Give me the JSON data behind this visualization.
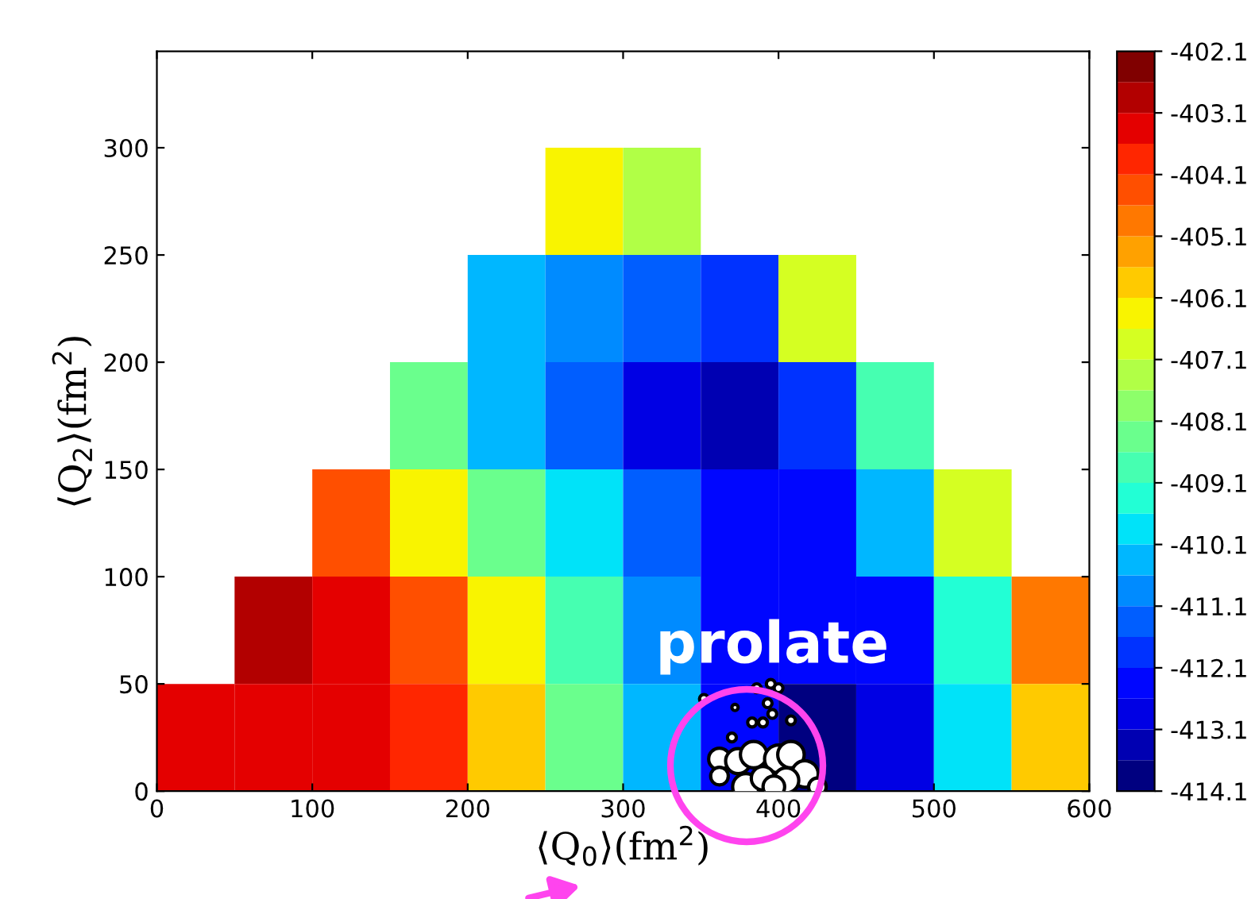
{
  "chart_data": [
    {
      "type": "heatmap",
      "xlabel": "⟨Q$_{0}$⟩(fm$^{2}$)",
      "ylabel": "⟨Q$_{2}$⟩(fm$^{2}$)",
      "x": [
        25,
        75,
        125,
        175,
        225,
        275,
        325,
        375,
        425,
        475,
        525,
        575
      ],
      "y": [
        275,
        225,
        175,
        125,
        75,
        25
      ],
      "cells": [
        [
          null,
          null,
          null,
          null,
          null,
          -406.5,
          -407.5,
          null,
          null,
          null,
          null,
          null
        ],
        [
          null,
          null,
          null,
          null,
          -410.3,
          -410.8,
          -411.5,
          -411.8,
          -407,
          null,
          null,
          null
        ],
        [
          null,
          null,
          null,
          -408.5,
          -410.5,
          -411.5,
          -413,
          -413.5,
          -412,
          -409,
          null,
          null
        ],
        [
          null,
          null,
          -404.5,
          -406.5,
          -408.5,
          -410,
          -411.5,
          -412.5,
          -412.3,
          -410.5,
          -407,
          null
        ],
        [
          null,
          -403,
          -403.3,
          -404.3,
          -406.5,
          -409,
          -410.8,
          -412.3,
          -412.5,
          -412.5,
          -409.5,
          -405
        ],
        [
          -403.5,
          -403.5,
          -403.5,
          -404,
          -406,
          -408.5,
          -410.5,
          -412.5,
          -413.8,
          -413,
          -410,
          -406
        ]
      ],
      "clim": [
        -414.1,
        -402.1
      ],
      "cticks": [
        -414.1,
        -413.1,
        -412.1,
        -411.1,
        -410.1,
        -409.1,
        -408.1,
        -407.1,
        -406.1,
        -405.1,
        -404.1,
        -403.1,
        -402.1
      ],
      "xlim": [
        0,
        600
      ],
      "xticks": [
        0,
        100,
        200,
        300,
        400,
        500,
        600
      ],
      "ylim": [
        0,
        345
      ],
      "yticks": [
        0,
        50,
        100,
        150,
        200,
        250,
        300
      ],
      "grid": false,
      "annotations": [
        "prolate"
      ],
      "series": [
        {
          "type": "bubble",
          "color": "#ffffff",
          "x": [
            352,
            386,
            395,
            400,
            372,
            393,
            396,
            390,
            383,
            408,
            370,
            362,
            374,
            384,
            400,
            408,
            417,
            379,
            390,
            405,
            397,
            425,
            362
          ],
          "values": [
            43,
            48,
            50,
            48,
            39,
            41,
            36,
            32,
            32,
            33,
            25,
            15,
            14,
            17,
            15,
            17,
            8,
            2,
            6,
            5,
            2,
            2,
            7
          ],
          "sizes": [
            0.1,
            0.1,
            0.1,
            0.1,
            0.05,
            0.1,
            0.1,
            0.1,
            0.1,
            0.1,
            0.1,
            0.6,
            0.8,
            0.9,
            1,
            0.9,
            0.9,
            0.9,
            0.7,
            0.8,
            0.6,
            0.4,
            0.4
          ]
        }
      ]
    }
  ]
}
